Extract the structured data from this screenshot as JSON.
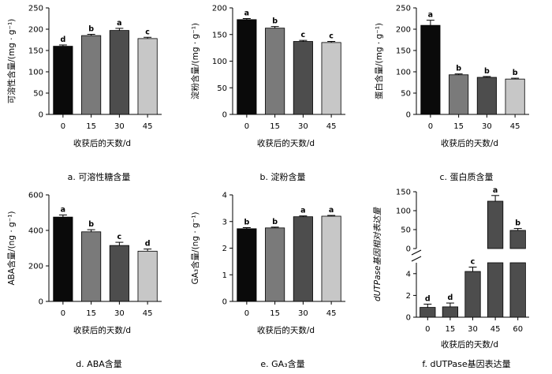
{
  "chart_data": [
    {
      "id": "a",
      "type": "bar",
      "caption": "a.  可溶性糖含量",
      "ylabel": "可溶性含量/(mg · g⁻¹)",
      "xlabel": "收获后的天数/d",
      "categories": [
        "0",
        "15",
        "30",
        "45"
      ],
      "values": [
        160,
        185,
        197,
        178
      ],
      "errors": [
        3,
        3,
        5,
        3
      ],
      "letters": [
        "d",
        "b",
        "a",
        "c"
      ],
      "colors": [
        "#0a0a0a",
        "#7a7a7a",
        "#4d4d4d",
        "#c7c7c7"
      ],
      "ylim": [
        0,
        250
      ],
      "yticks": [
        0,
        50,
        100,
        150,
        200,
        250
      ]
    },
    {
      "id": "b",
      "type": "bar",
      "caption": "b.  淀粉含量",
      "ylabel": "淀粉含量/(mg · g⁻¹)",
      "xlabel": "收获后的天数/d",
      "categories": [
        "0",
        "15",
        "30",
        "45"
      ],
      "values": [
        178,
        162,
        137,
        135
      ],
      "errors": [
        2,
        3,
        2,
        2
      ],
      "letters": [
        "a",
        "b",
        "c",
        "c"
      ],
      "colors": [
        "#0a0a0a",
        "#7a7a7a",
        "#4d4d4d",
        "#c7c7c7"
      ],
      "ylim": [
        0,
        200
      ],
      "yticks": [
        0,
        50,
        100,
        150,
        200
      ]
    },
    {
      "id": "c",
      "type": "bar",
      "caption": "c.  蛋白质含量",
      "ylabel": "蛋白含量/(mg · g⁻¹)",
      "xlabel": "收获后的天数/d",
      "categories": [
        "0",
        "15",
        "30",
        "45"
      ],
      "values": [
        209,
        93,
        87,
        83
      ],
      "errors": [
        12,
        2,
        2,
        2
      ],
      "letters": [
        "a",
        "b",
        "b",
        "b"
      ],
      "colors": [
        "#0a0a0a",
        "#7a7a7a",
        "#4d4d4d",
        "#c7c7c7"
      ],
      "ylim": [
        0,
        250
      ],
      "yticks": [
        0,
        50,
        100,
        150,
        200,
        250
      ]
    },
    {
      "id": "d",
      "type": "bar",
      "caption": "d.  ABA含量",
      "ylabel": "ABA含量/(ng · g⁻¹)",
      "xlabel": "收获后的天数/d",
      "categories": [
        "0",
        "15",
        "30",
        "45"
      ],
      "values": [
        475,
        392,
        315,
        283
      ],
      "errors": [
        12,
        12,
        18,
        12
      ],
      "letters": [
        "a",
        "b",
        "c",
        "d"
      ],
      "colors": [
        "#0a0a0a",
        "#7a7a7a",
        "#4d4d4d",
        "#c7c7c7"
      ],
      "ylim": [
        0,
        600
      ],
      "yticks": [
        0,
        200,
        400,
        600
      ]
    },
    {
      "id": "e",
      "type": "bar",
      "caption": "e.  GA₃含量",
      "ylabel": "GA₃含量/(ng · g⁻¹)",
      "xlabel": "收获后的天数/d",
      "categories": [
        "0",
        "15",
        "30",
        "45"
      ],
      "values": [
        2.73,
        2.76,
        3.18,
        3.2
      ],
      "errors": [
        0.04,
        0.03,
        0.03,
        0.03
      ],
      "letters": [
        "b",
        "b",
        "a",
        "a"
      ],
      "colors": [
        "#0a0a0a",
        "#7a7a7a",
        "#4d4d4d",
        "#c7c7c7"
      ],
      "ylim": [
        0,
        4
      ],
      "yticks": [
        0,
        1,
        2,
        3,
        4
      ]
    },
    {
      "id": "f",
      "type": "bar",
      "caption": "f.  dUTPase基因表达量",
      "ylabel": "dUTPase基因相对表达量",
      "xlabel": "收获后的天数/d",
      "categories": [
        "0",
        "15",
        "30",
        "45",
        "60"
      ],
      "values": [
        0.9,
        0.95,
        4.2,
        125,
        48
      ],
      "errors": [
        0.3,
        0.35,
        0.4,
        15,
        5
      ],
      "letters": [
        "d",
        "d",
        "c",
        "a",
        "b"
      ],
      "colors": [
        "#4d4d4d",
        "#4d4d4d",
        "#4d4d4d",
        "#4d4d4d",
        "#4d4d4d"
      ],
      "axis_break": true,
      "lower_ylim": [
        0,
        5
      ],
      "lower_yticks": [
        0,
        2,
        4
      ],
      "upper_ylim": [
        0,
        150
      ],
      "upper_yticks": [
        0,
        50,
        100,
        150
      ]
    }
  ]
}
